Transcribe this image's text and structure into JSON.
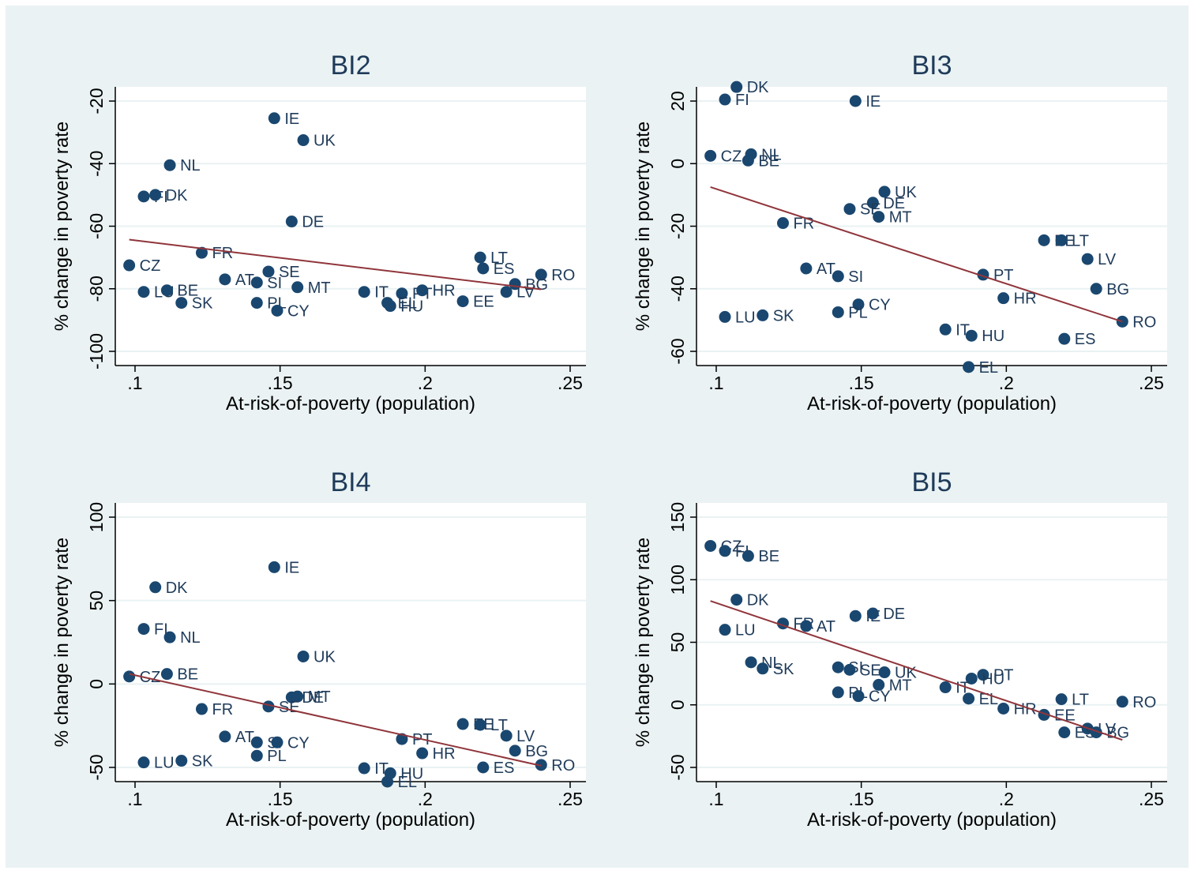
{
  "chart_data": [
    {
      "type": "scatter",
      "title": "BI2",
      "xlabel": "At-risk-of-poverty (population)",
      "ylabel": "% change in poverty rate",
      "xlim": [
        0.1,
        0.25
      ],
      "ylim": [
        -100,
        -20
      ],
      "xticks": [
        0.1,
        0.15,
        0.2,
        0.25
      ],
      "xtick_labels": [
        ".1",
        ".15",
        ".2",
        ".25"
      ],
      "yticks": [
        -100,
        -80,
        -60,
        -40,
        -20
      ],
      "ytick_labels": [
        "-100",
        "-80",
        "-60",
        "-40",
        "-20"
      ],
      "grid": true,
      "fit_line": {
        "x": [
          0.098,
          0.24
        ],
        "y": [
          -64.3,
          -80.2
        ]
      },
      "points": [
        {
          "label": "IE",
          "x": 0.148,
          "y": -25.5
        },
        {
          "label": "UK",
          "x": 0.158,
          "y": -32.5
        },
        {
          "label": "NL",
          "x": 0.112,
          "y": -40.5
        },
        {
          "label": "FI",
          "x": 0.103,
          "y": -50.5
        },
        {
          "label": "DK",
          "x": 0.107,
          "y": -50
        },
        {
          "label": "DE",
          "x": 0.154,
          "y": -58.5
        },
        {
          "label": "FR",
          "x": 0.123,
          "y": -68.5
        },
        {
          "label": "LT",
          "x": 0.219,
          "y": -70
        },
        {
          "label": "ES",
          "x": 0.22,
          "y": -73.5
        },
        {
          "label": "CZ",
          "x": 0.098,
          "y": -72.5
        },
        {
          "label": "SE",
          "x": 0.146,
          "y": -74.5
        },
        {
          "label": "RO",
          "x": 0.24,
          "y": -75.5
        },
        {
          "label": "AT",
          "x": 0.131,
          "y": -77
        },
        {
          "label": "SI",
          "x": 0.142,
          "y": -78
        },
        {
          "label": "MT",
          "x": 0.156,
          "y": -79.5
        },
        {
          "label": "BG",
          "x": 0.231,
          "y": -78.5
        },
        {
          "label": "LU",
          "x": 0.103,
          "y": -81
        },
        {
          "label": "BE",
          "x": 0.111,
          "y": -80.5
        },
        {
          "label": "IT",
          "x": 0.179,
          "y": -81
        },
        {
          "label": "PT",
          "x": 0.192,
          "y": -81.5
        },
        {
          "label": "HR",
          "x": 0.199,
          "y": -80.5
        },
        {
          "label": "LV",
          "x": 0.228,
          "y": -81
        },
        {
          "label": "SK",
          "x": 0.116,
          "y": -84.5
        },
        {
          "label": "PL",
          "x": 0.142,
          "y": -84.5
        },
        {
          "label": "EE",
          "x": 0.213,
          "y": -84
        },
        {
          "label": "EL",
          "x": 0.187,
          "y": -84.5
        },
        {
          "label": "HU",
          "x": 0.188,
          "y": -85.5
        },
        {
          "label": "CY",
          "x": 0.149,
          "y": -87
        }
      ]
    },
    {
      "type": "scatter",
      "title": "BI3",
      "xlabel": "At-risk-of-poverty (population)",
      "ylabel": "% change in poverty rate",
      "xlim": [
        0.1,
        0.25
      ],
      "ylim": [
        -60,
        20
      ],
      "xticks": [
        0.1,
        0.15,
        0.2,
        0.25
      ],
      "xtick_labels": [
        ".1",
        ".15",
        ".2",
        ".25"
      ],
      "yticks": [
        -60,
        -40,
        -20,
        0,
        20
      ],
      "ytick_labels": [
        "-60",
        "-40",
        "-20",
        "0",
        "20"
      ],
      "grid": true,
      "fit_line": {
        "x": [
          0.098,
          0.24
        ],
        "y": [
          -7.5,
          -50.5
        ]
      },
      "points": [
        {
          "label": "DK",
          "x": 0.107,
          "y": 24.5
        },
        {
          "label": "FI",
          "x": 0.103,
          "y": 20.5
        },
        {
          "label": "IE",
          "x": 0.148,
          "y": 20
        },
        {
          "label": "CZ",
          "x": 0.098,
          "y": 2.5
        },
        {
          "label": "NL",
          "x": 0.112,
          "y": 3
        },
        {
          "label": "BE",
          "x": 0.111,
          "y": 1
        },
        {
          "label": "UK",
          "x": 0.158,
          "y": -9
        },
        {
          "label": "DE",
          "x": 0.154,
          "y": -12.5
        },
        {
          "label": "SE",
          "x": 0.146,
          "y": -14.5
        },
        {
          "label": "MT",
          "x": 0.156,
          "y": -17
        },
        {
          "label": "FR",
          "x": 0.123,
          "y": -19
        },
        {
          "label": "EE",
          "x": 0.213,
          "y": -24.5
        },
        {
          "label": "LT",
          "x": 0.219,
          "y": -24.5
        },
        {
          "label": "LV",
          "x": 0.228,
          "y": -30.5
        },
        {
          "label": "AT",
          "x": 0.131,
          "y": -33.5
        },
        {
          "label": "SI",
          "x": 0.142,
          "y": -36
        },
        {
          "label": "PT",
          "x": 0.192,
          "y": -35.5
        },
        {
          "label": "BG",
          "x": 0.231,
          "y": -40
        },
        {
          "label": "HR",
          "x": 0.199,
          "y": -43
        },
        {
          "label": "CY",
          "x": 0.149,
          "y": -45
        },
        {
          "label": "PL",
          "x": 0.142,
          "y": -47.5
        },
        {
          "label": "LU",
          "x": 0.103,
          "y": -49
        },
        {
          "label": "SK",
          "x": 0.116,
          "y": -48.5
        },
        {
          "label": "RO",
          "x": 0.24,
          "y": -50.5
        },
        {
          "label": "IT",
          "x": 0.179,
          "y": -53
        },
        {
          "label": "HU",
          "x": 0.188,
          "y": -55
        },
        {
          "label": "ES",
          "x": 0.22,
          "y": -56
        },
        {
          "label": "EL",
          "x": 0.187,
          "y": -65
        }
      ]
    },
    {
      "type": "scatter",
      "title": "BI4",
      "xlabel": "At-risk-of-poverty (population)",
      "ylabel": "% change in poverty rate",
      "xlim": [
        0.1,
        0.25
      ],
      "ylim": [
        -50,
        100
      ],
      "xticks": [
        0.1,
        0.15,
        0.2,
        0.25
      ],
      "xtick_labels": [
        ".1",
        ".15",
        ".2",
        ".25"
      ],
      "yticks": [
        -50,
        0,
        50,
        100
      ],
      "ytick_labels": [
        "-50",
        "0",
        "50",
        "100"
      ],
      "grid": true,
      "fit_line": {
        "x": [
          0.098,
          0.24
        ],
        "y": [
          6,
          -49
        ]
      },
      "points": [
        {
          "label": "IE",
          "x": 0.148,
          "y": 70
        },
        {
          "label": "DK",
          "x": 0.107,
          "y": 58
        },
        {
          "label": "FI",
          "x": 0.103,
          "y": 33
        },
        {
          "label": "NL",
          "x": 0.112,
          "y": 28
        },
        {
          "label": "UK",
          "x": 0.158,
          "y": 16.5
        },
        {
          "label": "CZ",
          "x": 0.098,
          "y": 4.5
        },
        {
          "label": "BE",
          "x": 0.111,
          "y": 6
        },
        {
          "label": "DE",
          "x": 0.154,
          "y": -8
        },
        {
          "label": "MT",
          "x": 0.156,
          "y": -7.5
        },
        {
          "label": "SE",
          "x": 0.146,
          "y": -13.5
        },
        {
          "label": "FR",
          "x": 0.123,
          "y": -15
        },
        {
          "label": "EE",
          "x": 0.213,
          "y": -24
        },
        {
          "label": "LT",
          "x": 0.219,
          "y": -24.5
        },
        {
          "label": "LV",
          "x": 0.228,
          "y": -31
        },
        {
          "label": "AT",
          "x": 0.131,
          "y": -31.5
        },
        {
          "label": "PT",
          "x": 0.192,
          "y": -33
        },
        {
          "label": "SI",
          "x": 0.142,
          "y": -35
        },
        {
          "label": "CY",
          "x": 0.149,
          "y": -35
        },
        {
          "label": "BG",
          "x": 0.231,
          "y": -40
        },
        {
          "label": "HR",
          "x": 0.199,
          "y": -41.5
        },
        {
          "label": "PL",
          "x": 0.142,
          "y": -43
        },
        {
          "label": "LU",
          "x": 0.103,
          "y": -47
        },
        {
          "label": "SK",
          "x": 0.116,
          "y": -46
        },
        {
          "label": "RO",
          "x": 0.24,
          "y": -48.5
        },
        {
          "label": "ES",
          "x": 0.22,
          "y": -50
        },
        {
          "label": "IT",
          "x": 0.179,
          "y": -50.5
        },
        {
          "label": "HU",
          "x": 0.188,
          "y": -53.5
        },
        {
          "label": "EL",
          "x": 0.187,
          "y": -58.5
        }
      ]
    },
    {
      "type": "scatter",
      "title": "BI5",
      "xlabel": "At-risk-of-poverty (population)",
      "ylabel": "% change in poverty rate",
      "xlim": [
        0.1,
        0.25
      ],
      "ylim": [
        -50,
        150
      ],
      "xticks": [
        0.1,
        0.15,
        0.2,
        0.25
      ],
      "xtick_labels": [
        ".1",
        ".15",
        ".2",
        ".25"
      ],
      "yticks": [
        -50,
        0,
        50,
        100,
        150
      ],
      "ytick_labels": [
        "-50",
        "0",
        "50",
        "100",
        "150"
      ],
      "grid": true,
      "fit_line": {
        "x": [
          0.098,
          0.24
        ],
        "y": [
          83,
          -28
        ]
      },
      "points": [
        {
          "label": "CZ",
          "x": 0.098,
          "y": 127
        },
        {
          "label": "FI",
          "x": 0.103,
          "y": 123
        },
        {
          "label": "BE",
          "x": 0.111,
          "y": 119
        },
        {
          "label": "DK",
          "x": 0.107,
          "y": 84
        },
        {
          "label": "IE",
          "x": 0.148,
          "y": 71
        },
        {
          "label": "DE",
          "x": 0.154,
          "y": 73
        },
        {
          "label": "FR",
          "x": 0.123,
          "y": 65
        },
        {
          "label": "AT",
          "x": 0.131,
          "y": 63
        },
        {
          "label": "LU",
          "x": 0.103,
          "y": 60
        },
        {
          "label": "NL",
          "x": 0.112,
          "y": 34
        },
        {
          "label": "SK",
          "x": 0.116,
          "y": 29
        },
        {
          "label": "SI",
          "x": 0.142,
          "y": 30
        },
        {
          "label": "SE",
          "x": 0.146,
          "y": 28
        },
        {
          "label": "UK",
          "x": 0.158,
          "y": 26
        },
        {
          "label": "PT",
          "x": 0.192,
          "y": 24
        },
        {
          "label": "HU",
          "x": 0.188,
          "y": 21
        },
        {
          "label": "MT",
          "x": 0.156,
          "y": 16
        },
        {
          "label": "IT",
          "x": 0.179,
          "y": 14
        },
        {
          "label": "PL",
          "x": 0.142,
          "y": 10
        },
        {
          "label": "CY",
          "x": 0.149,
          "y": 7
        },
        {
          "label": "EL",
          "x": 0.187,
          "y": 5
        },
        {
          "label": "LT",
          "x": 0.219,
          "y": 4.5
        },
        {
          "label": "RO",
          "x": 0.24,
          "y": 2.5
        },
        {
          "label": "HR",
          "x": 0.199,
          "y": -3
        },
        {
          "label": "EE",
          "x": 0.213,
          "y": -8
        },
        {
          "label": "LV",
          "x": 0.228,
          "y": -19
        },
        {
          "label": "ES",
          "x": 0.22,
          "y": -22
        },
        {
          "label": "BG",
          "x": 0.231,
          "y": -22
        }
      ]
    }
  ],
  "colors": {
    "outer_background": "#eaf2f3",
    "plot_region": "#ffffff",
    "grid": "#eaf2f3",
    "marker": "#1a476f",
    "label_text": "#1f3b5a",
    "fit_line": "#90353b",
    "axis": "#000000"
  }
}
